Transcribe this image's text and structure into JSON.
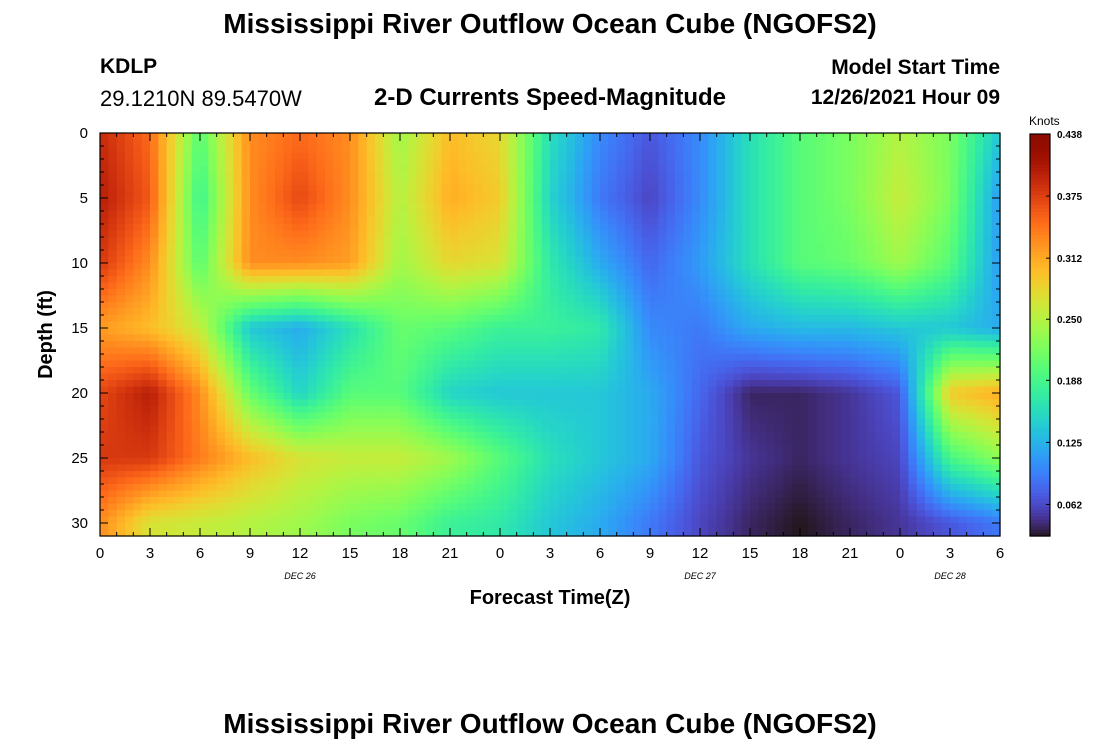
{
  "header": {
    "title": "Mississippi River Outflow Ocean Cube (NGOFS2)",
    "station_id": "KDLP",
    "station_coords": "29.1210N  89.5470W",
    "subtitle": "2-D Currents Speed-Magnitude",
    "model_start_label": "Model Start Time",
    "model_start_value": "12/26/2021 Hour 09"
  },
  "footer": {
    "title": "Mississippi River Outflow Ocean Cube (NGOFS2)"
  },
  "chart_data": {
    "type": "heatmap",
    "xlabel": "Forecast Time(Z)",
    "ylabel": "Depth (ft)",
    "x_tick_labels": [
      "0",
      "3",
      "6",
      "9",
      "12",
      "15",
      "18",
      "21",
      "0",
      "3",
      "6",
      "9",
      "12",
      "15",
      "18",
      "21",
      "0",
      "3",
      "6"
    ],
    "x_hours": [
      0,
      3,
      6,
      9,
      12,
      15,
      18,
      21,
      24,
      27,
      30,
      33,
      36,
      39,
      42,
      45,
      48,
      51,
      54
    ],
    "x_range_hours": [
      0,
      54
    ],
    "day_labels": [
      {
        "text": "DEC 26",
        "hour": 12
      },
      {
        "text": "DEC 27",
        "hour": 36
      },
      {
        "text": "DEC 28",
        "hour": 51
      }
    ],
    "y_tick_labels": [
      "0",
      "5",
      "10",
      "15",
      "20",
      "25",
      "30"
    ],
    "y_values": [
      0,
      5,
      10,
      15,
      20,
      25,
      30
    ],
    "y_range": [
      0,
      31
    ],
    "y_inverted": true,
    "colorbar": {
      "unit": "Knots",
      "range": [
        0.03,
        0.438
      ],
      "ticks": [
        "0.438",
        "0.375",
        "0.312",
        "0.250",
        "0.188",
        "0.125",
        "0.062"
      ],
      "tick_values": [
        0.438,
        0.375,
        0.312,
        0.25,
        0.188,
        0.125,
        0.062
      ],
      "colormap": "turbo"
    },
    "anchor_hours": [
      0,
      3,
      6,
      9,
      12,
      15,
      18,
      21,
      24,
      27,
      30,
      33,
      36,
      39,
      42,
      45,
      48,
      51,
      54
    ],
    "anchor_depths": [
      0,
      5,
      10,
      15,
      20,
      25,
      30
    ],
    "speed_grid": [
      [
        0.39,
        0.35,
        0.2,
        0.33,
        0.35,
        0.33,
        0.24,
        0.3,
        0.28,
        0.16,
        0.1,
        0.07,
        0.1,
        0.16,
        0.2,
        0.22,
        0.25,
        0.22,
        0.14
      ],
      [
        0.4,
        0.36,
        0.18,
        0.33,
        0.37,
        0.33,
        0.25,
        0.31,
        0.29,
        0.15,
        0.09,
        0.06,
        0.1,
        0.16,
        0.2,
        0.22,
        0.26,
        0.22,
        0.11
      ],
      [
        0.38,
        0.33,
        0.2,
        0.33,
        0.33,
        0.32,
        0.24,
        0.28,
        0.27,
        0.17,
        0.12,
        0.08,
        0.11,
        0.16,
        0.2,
        0.21,
        0.24,
        0.2,
        0.11
      ],
      [
        0.32,
        0.3,
        0.26,
        0.14,
        0.12,
        0.16,
        0.21,
        0.2,
        0.18,
        0.18,
        0.17,
        0.1,
        0.09,
        0.12,
        0.13,
        0.13,
        0.14,
        0.14,
        0.12
      ],
      [
        0.37,
        0.4,
        0.33,
        0.21,
        0.15,
        0.2,
        0.2,
        0.15,
        0.14,
        0.14,
        0.14,
        0.12,
        0.08,
        0.04,
        0.04,
        0.05,
        0.07,
        0.29,
        0.31
      ],
      [
        0.38,
        0.38,
        0.34,
        0.3,
        0.27,
        0.26,
        0.26,
        0.24,
        0.2,
        0.16,
        0.14,
        0.12,
        0.07,
        0.05,
        0.04,
        0.05,
        0.06,
        0.19,
        0.23
      ],
      [
        0.33,
        0.27,
        0.26,
        0.25,
        0.24,
        0.22,
        0.21,
        0.18,
        0.17,
        0.14,
        0.12,
        0.09,
        0.06,
        0.04,
        0.03,
        0.04,
        0.05,
        0.07,
        0.09
      ]
    ]
  }
}
